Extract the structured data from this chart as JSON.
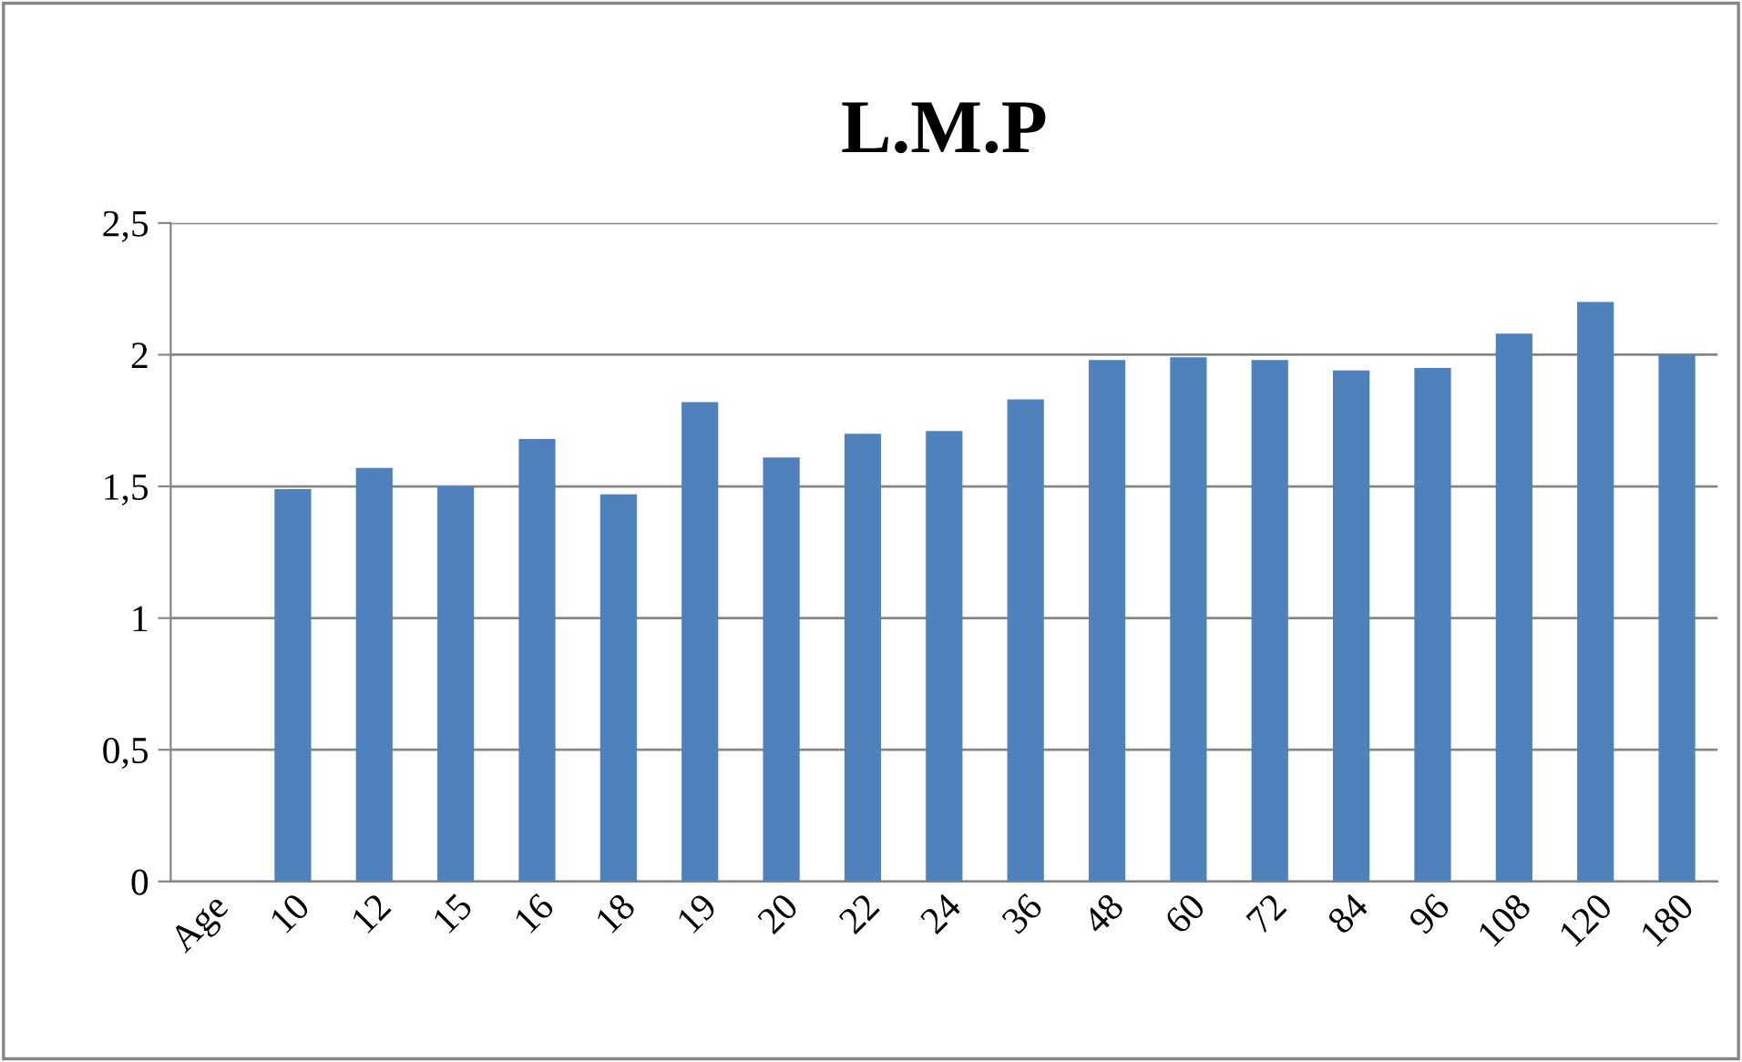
{
  "chart_data": {
    "type": "bar",
    "title": "L.M.P",
    "categories": [
      "Age",
      "10",
      "12",
      "15",
      "16",
      "18",
      "19",
      "20",
      "22",
      "24",
      "36",
      "48",
      "60",
      "72",
      "84",
      "96",
      "108",
      "120",
      "180"
    ],
    "values": [
      null,
      1.49,
      1.57,
      1.5,
      1.68,
      1.47,
      1.82,
      1.61,
      1.7,
      1.71,
      1.83,
      1.98,
      1.99,
      1.98,
      1.94,
      1.95,
      2.08,
      2.2,
      2.0
    ],
    "color": "#4f81bd",
    "ylim": [
      0,
      2.5
    ],
    "yticks": [
      0,
      {
        "value": 0.5,
        "label": "0,5"
      },
      1,
      {
        "value": 1.5,
        "label": "1,5"
      },
      2,
      {
        "value": 2.5,
        "label": "2,5"
      }
    ],
    "grid": "y",
    "legend": false
  }
}
